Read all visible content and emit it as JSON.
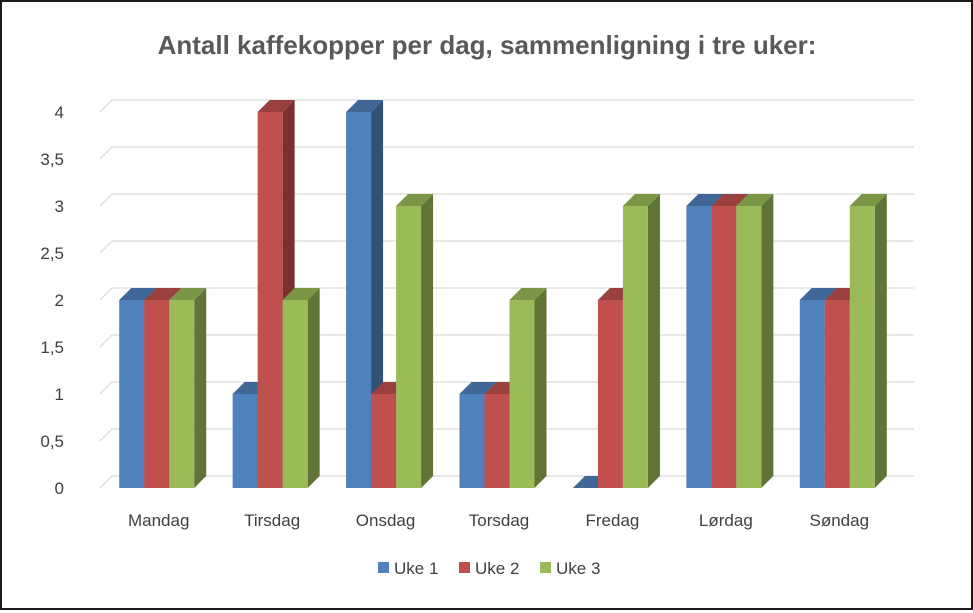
{
  "chart_data": {
    "type": "bar",
    "title": "Antall kaffekopper per dag, sammenligning i tre uker:",
    "xlabel": "",
    "ylabel": "",
    "categories": [
      "Mandag",
      "Tirsdag",
      "Onsdag",
      "Torsdag",
      "Fredag",
      "Lørdag",
      "Søndag"
    ],
    "series": [
      {
        "name": "Uke 1",
        "color": "#4f81bd",
        "values": [
          2,
          1,
          4,
          1,
          0,
          3,
          2
        ]
      },
      {
        "name": "Uke 2",
        "color": "#c0504d",
        "values": [
          2,
          4,
          1,
          1,
          2,
          3,
          2
        ]
      },
      {
        "name": "Uke 3",
        "color": "#9bbb59",
        "values": [
          2,
          2,
          3,
          2,
          3,
          3,
          3
        ]
      }
    ],
    "ylim": [
      0,
      4
    ],
    "ytick_labels": [
      "0",
      "0,5",
      "1",
      "1,5",
      "2",
      "2,5",
      "3",
      "3,5",
      "4"
    ],
    "grid": true,
    "legend_position": "bottom"
  }
}
